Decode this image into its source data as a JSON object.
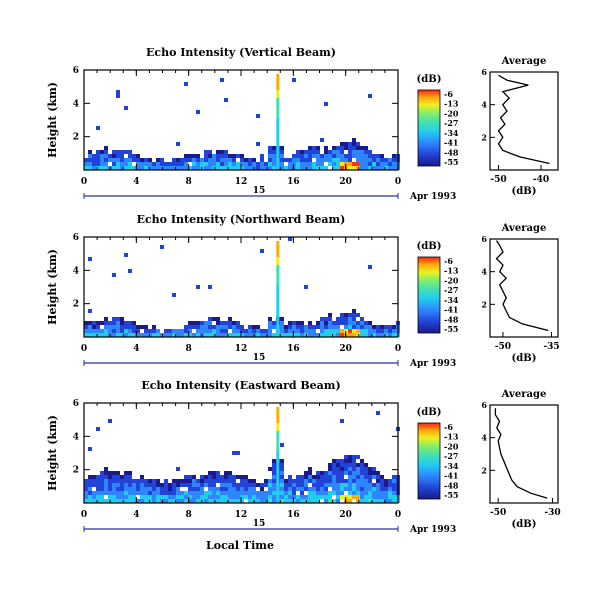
{
  "chart_data": {
    "type": "heatmap",
    "date_label": "Apr 1993",
    "xlabel": "Local Time",
    "ylabel": "Height (km)",
    "colorbar_unit": "(dB)",
    "colorbar_ticks": [
      "-6",
      "-13",
      "-20",
      "-27",
      "-34",
      "-41",
      "-48",
      "-55"
    ],
    "x_ticks": [
      "0",
      "4",
      "8",
      "12",
      "16",
      "20",
      "0"
    ],
    "y_ticks": [
      "2",
      "4",
      "6"
    ],
    "day_label": "15",
    "colors": {
      "scale": [
        "#1a1a8c",
        "#2244d6",
        "#2e86ff",
        "#22ccee",
        "#44e0b0",
        "#88ee66",
        "#eeee22",
        "#ffaa11",
        "#ff3311",
        "#cc0000"
      ]
    },
    "panels": [
      {
        "title": "Echo Intensity (Vertical Beam)",
        "average_title": "Average",
        "average_xlabel": "(dB)",
        "average_xticks": [
          "-50",
          "-40"
        ],
        "average_xlim": [
          -52,
          -36
        ],
        "average_profile": {
          "height": [
            0.4,
            0.8,
            1.2,
            1.6,
            2.0,
            2.4,
            2.8,
            3.2,
            3.6,
            4.0,
            4.4,
            4.8,
            5.2,
            5.5,
            5.8
          ],
          "db": [
            -38,
            -45,
            -49,
            -50,
            -49,
            -50,
            -48.5,
            -49.5,
            -48,
            -49,
            -47.5,
            -49,
            -43,
            -48,
            -50
          ]
        },
        "echo": {
          "base_top_km": 0.9,
          "top_km": 1.3,
          "event1": 0.4,
          "event2": 0.6
        }
      },
      {
        "title": "Echo Intensity (Northward Beam)",
        "average_title": "Average",
        "average_xlabel": "(dB)",
        "average_xticks": [
          "-50",
          "-35"
        ],
        "average_xlim": [
          -54,
          -33
        ],
        "average_profile": {
          "height": [
            0.4,
            0.8,
            1.2,
            1.6,
            2.0,
            2.4,
            2.8,
            3.2,
            3.6,
            4.0,
            4.4,
            4.8,
            5.2,
            5.6,
            5.9
          ],
          "db": [
            -36,
            -44,
            -48,
            -49,
            -50,
            -49,
            -50,
            -51,
            -49,
            -51,
            -50,
            -52,
            -50,
            -51,
            -52
          ]
        },
        "echo": {
          "base_top_km": 0.8,
          "top_km": 1.1,
          "event1": 0.35,
          "event2": 0.5
        }
      },
      {
        "title": "Echo Intensity (Eastward Beam)",
        "average_title": "Average",
        "average_xlabel": "(dB)",
        "average_xticks": [
          "-50",
          "-30"
        ],
        "average_xlim": [
          -53,
          -28
        ],
        "average_profile": {
          "height": [
            0.3,
            0.6,
            1.0,
            1.4,
            1.8,
            2.2,
            2.6,
            3.0,
            3.4,
            3.8,
            4.2,
            4.6,
            5.0,
            5.4,
            5.8
          ],
          "db": [
            -32,
            -38,
            -43,
            -45,
            -46,
            -47,
            -48,
            -49,
            -49.5,
            -50,
            -49,
            -50.5,
            -49.5,
            -51,
            -51
          ]
        },
        "echo": {
          "base_top_km": 1.6,
          "top_km": 2.6,
          "event1": 0.6,
          "event2": 0.9
        }
      }
    ]
  }
}
